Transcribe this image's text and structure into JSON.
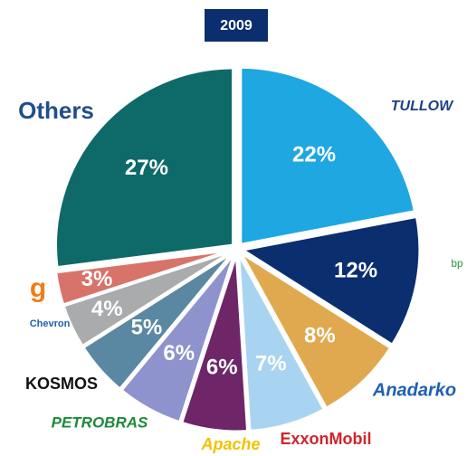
{
  "chart_data": {
    "type": "pie",
    "title": "2009",
    "categories": [
      "TULLOW",
      "bp",
      "Anadarko",
      "ExxonMobil",
      "Apache",
      "PETROBRAS",
      "KOSMOS",
      "Chevron",
      "g",
      "Others"
    ],
    "values": [
      22,
      12,
      8,
      7,
      6,
      6,
      5,
      4,
      3,
      27
    ],
    "value_labels": [
      "22%",
      "12%",
      "8%",
      "7%",
      "6%",
      "6%",
      "5%",
      "4%",
      "3%",
      "27%"
    ],
    "colors": [
      "#1ea7e1",
      "#0b2f6e",
      "#e1a94f",
      "#a9d4f1",
      "#6e2668",
      "#8f93cd",
      "#5a88a2",
      "#a9abac",
      "#d8736a",
      "#0e6a69"
    ]
  }
}
